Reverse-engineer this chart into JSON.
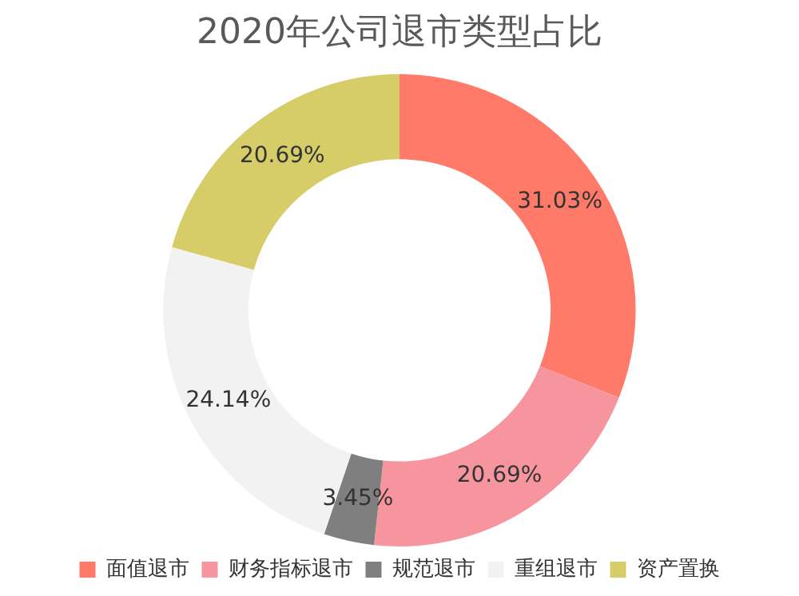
{
  "chart_data": {
    "type": "donut",
    "title": "2020年公司退市类型占比",
    "categories": [
      "面值退市",
      "财务指标退市",
      "规范退市",
      "重组退市",
      "资产置换"
    ],
    "values": [
      31.03,
      20.69,
      3.45,
      24.14,
      20.69
    ],
    "colors": [
      "#ff7a69",
      "#f7959e",
      "#7f7f7f",
      "#f2f2f2",
      "#d6cd69"
    ],
    "value_labels": [
      "31.03%",
      "20.69%",
      "3.45%",
      "24.14%",
      "20.69%"
    ],
    "legend": "bottom"
  }
}
